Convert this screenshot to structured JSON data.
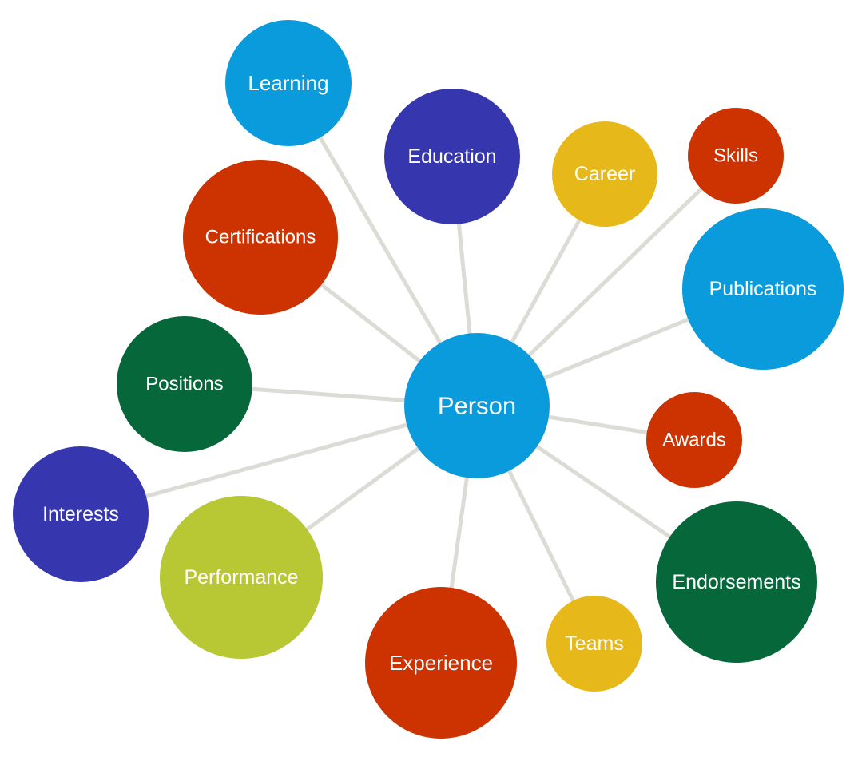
{
  "center": {
    "label": "Person",
    "color": "#0a9bdc"
  },
  "nodes": [
    {
      "id": "learning",
      "label": "Learning",
      "color": "#0a9bdc"
    },
    {
      "id": "education",
      "label": "Education",
      "color": "#3636ae"
    },
    {
      "id": "career",
      "label": "Career",
      "color": "#e7b81a"
    },
    {
      "id": "skills",
      "label": "Skills",
      "color": "#cc3300"
    },
    {
      "id": "certifications",
      "label": "Certifications",
      "color": "#cc3300"
    },
    {
      "id": "publications",
      "label": "Publications",
      "color": "#0a9bdc"
    },
    {
      "id": "positions",
      "label": "Positions",
      "color": "#06683a"
    },
    {
      "id": "awards",
      "label": "Awards",
      "color": "#cc3300"
    },
    {
      "id": "interests",
      "label": "Interests",
      "color": "#3636ae"
    },
    {
      "id": "performance",
      "label": "Performance",
      "color": "#b7c834"
    },
    {
      "id": "endorsements",
      "label": "Endorsements",
      "color": "#06683a"
    },
    {
      "id": "experience",
      "label": "Experience",
      "color": "#cc3300"
    },
    {
      "id": "teams",
      "label": "Teams",
      "color": "#e7b81a"
    }
  ],
  "edge_color": "#dcdcd6"
}
